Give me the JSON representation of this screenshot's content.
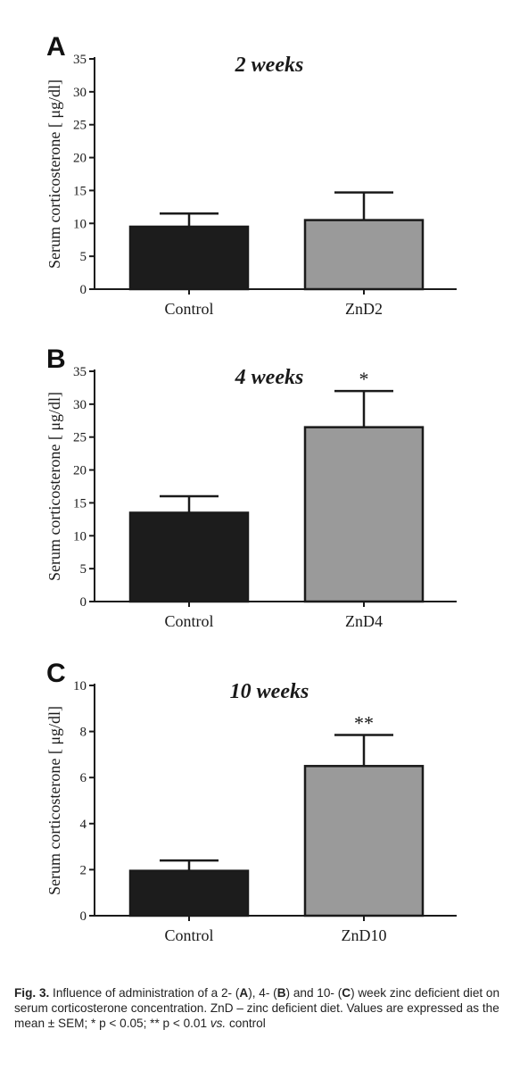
{
  "chart_data": [
    {
      "type": "bar",
      "panel_label": "A",
      "title": "2 weeks",
      "ylabel": "Serum corticosterone [ μg/dl]",
      "ylim": [
        0,
        35
      ],
      "yticks": [
        0,
        5,
        10,
        15,
        20,
        25,
        30,
        35
      ],
      "categories": [
        "Control",
        "ZnD2"
      ],
      "values": [
        9.5,
        10.5
      ],
      "errors": [
        2.0,
        4.2
      ],
      "significance": [
        "",
        ""
      ],
      "colors": [
        "#1c1c1c",
        "#9a9a9a"
      ]
    },
    {
      "type": "bar",
      "panel_label": "B",
      "title": "4 weeks",
      "ylabel": "Serum corticosterone [ μg/dl]",
      "ylim": [
        0,
        35
      ],
      "yticks": [
        0,
        5,
        10,
        15,
        20,
        25,
        30,
        35
      ],
      "categories": [
        "Control",
        "ZnD4"
      ],
      "values": [
        13.5,
        26.5
      ],
      "errors": [
        2.5,
        5.5
      ],
      "significance": [
        "",
        "*"
      ],
      "colors": [
        "#1c1c1c",
        "#9a9a9a"
      ]
    },
    {
      "type": "bar",
      "panel_label": "C",
      "title": "10 weeks",
      "ylabel": "Serum corticosterone [ μg/dl]",
      "ylim": [
        0,
        10
      ],
      "yticks": [
        0,
        2,
        4,
        6,
        8,
        10
      ],
      "categories": [
        "Control",
        "ZnD10"
      ],
      "values": [
        1.95,
        6.5
      ],
      "errors": [
        0.45,
        1.35
      ],
      "significance": [
        "",
        "**"
      ],
      "colors": [
        "#1c1c1c",
        "#9a9a9a"
      ]
    }
  ],
  "caption": {
    "fig_label": "Fig. 3.",
    "p1": " Influence of administration of a 2- (",
    "a": "A",
    "p2": "), 4- (",
    "b": "B",
    "p3": ") and 10- (",
    "c": "C",
    "p4": ") week zinc deficient diet on serum corticosterone concentration. ZnD – zinc deficient diet. Values are expressed as the mean ± SEM; * p < 0.05; ** p < 0.01 ",
    "vs": "vs.",
    "p5": " control"
  }
}
